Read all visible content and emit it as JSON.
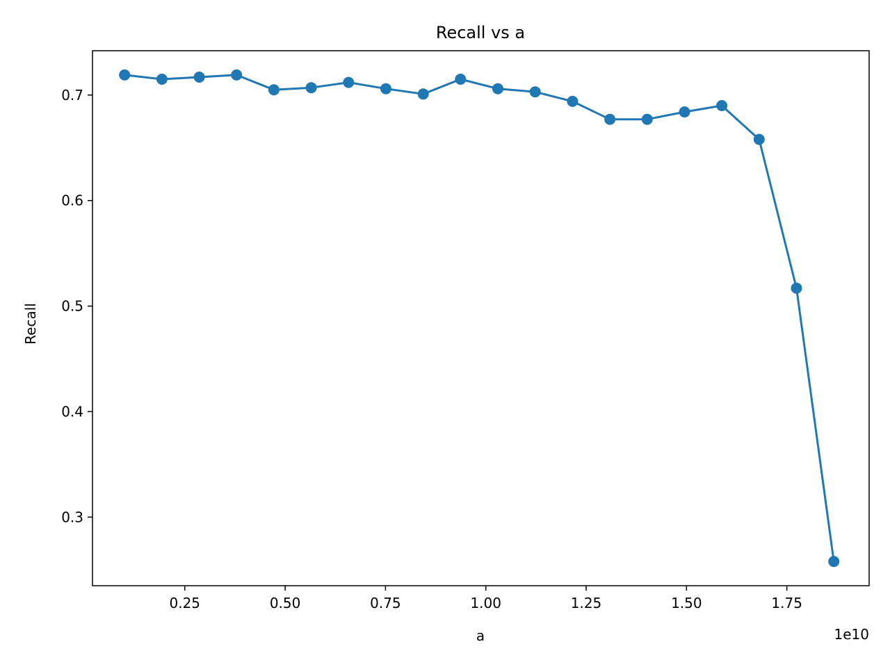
{
  "chart_data": {
    "type": "line",
    "title": "Recall vs a",
    "xlabel": "a",
    "ylabel": "Recall",
    "x_offset_label": "1e10",
    "xlim": [
      0.02,
      1.955
    ],
    "ylim": [
      0.235,
      0.742
    ],
    "x_ticks": [
      {
        "value": 0.25,
        "label": "0.25"
      },
      {
        "value": 0.5,
        "label": "0.50"
      },
      {
        "value": 0.75,
        "label": "0.75"
      },
      {
        "value": 1.0,
        "label": "1.00"
      },
      {
        "value": 1.25,
        "label": "1.25"
      },
      {
        "value": 1.5,
        "label": "1.50"
      },
      {
        "value": 1.75,
        "label": "1.75"
      }
    ],
    "y_ticks": [
      {
        "value": 0.3,
        "label": "0.3"
      },
      {
        "value": 0.4,
        "label": "0.4"
      },
      {
        "value": 0.5,
        "label": "0.5"
      },
      {
        "value": 0.6,
        "label": "0.6"
      },
      {
        "value": 0.7,
        "label": "0.7"
      }
    ],
    "grid": false,
    "series": [
      {
        "color": "#1f77b4",
        "marker": "circle",
        "x": [
          0.1,
          0.193,
          0.286,
          0.379,
          0.472,
          0.565,
          0.658,
          0.751,
          0.844,
          0.937,
          1.03,
          1.123,
          1.216,
          1.309,
          1.402,
          1.495,
          1.588,
          1.681,
          1.774,
          1.867
        ],
        "y": [
          0.719,
          0.715,
          0.717,
          0.719,
          0.705,
          0.707,
          0.712,
          0.706,
          0.701,
          0.715,
          0.706,
          0.703,
          0.694,
          0.677,
          0.677,
          0.684,
          0.69,
          0.658,
          0.517,
          0.258
        ]
      }
    ]
  }
}
